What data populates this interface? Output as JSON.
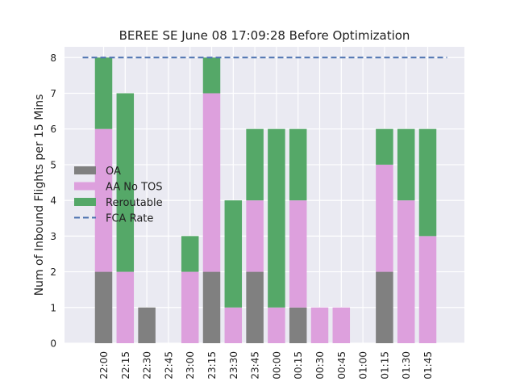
{
  "chart_data": {
    "type": "bar",
    "stacked": true,
    "title": "BEREE SE June 08 17:09:28 Before Optimization",
    "xlabel": "",
    "ylabel": "Num of Inbound Flights per 15 Mins",
    "ylim": [
      0,
      8.3
    ],
    "yticks": [
      0,
      1,
      2,
      3,
      4,
      5,
      6,
      7,
      8
    ],
    "grid": true,
    "legend_position": "center-left",
    "categories": [
      "22:00",
      "22:15",
      "22:30",
      "22:45",
      "23:00",
      "23:15",
      "23:30",
      "23:45",
      "00:00",
      "00:15",
      "00:30",
      "00:45",
      "01:00",
      "01:15",
      "01:30",
      "01:45"
    ],
    "series": [
      {
        "name": "OA",
        "color": "#808080",
        "values": [
          2,
          0,
          1,
          0,
          0,
          2,
          0,
          2,
          0,
          1,
          0,
          0,
          0,
          2,
          0,
          0
        ]
      },
      {
        "name": "AA No TOS",
        "color": "#dda0dd",
        "values": [
          4,
          2,
          0,
          0,
          2,
          5,
          1,
          2,
          1,
          3,
          1,
          1,
          0,
          3,
          4,
          3
        ]
      },
      {
        "name": "Reroutable",
        "color": "#55a868",
        "values": [
          2,
          5,
          0,
          0,
          1,
          1,
          3,
          2,
          5,
          2,
          0,
          0,
          0,
          1,
          2,
          3
        ]
      }
    ],
    "reference_line": {
      "name": "FCA Rate",
      "value": 8,
      "color": "#4c72b0",
      "style": "dashed"
    }
  }
}
